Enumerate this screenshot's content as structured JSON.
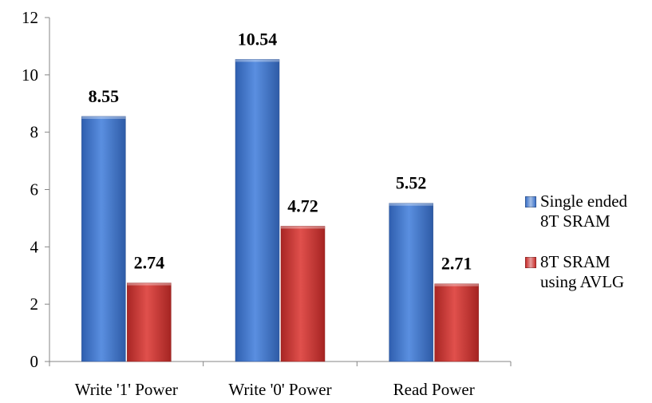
{
  "chart_data": {
    "type": "bar",
    "categories": [
      "Write '1' Power",
      "Write '0' Power",
      "Read Power"
    ],
    "series": [
      {
        "name": "Single ended 8T SRAM",
        "legend_lines": [
          "Single ended",
          "8T SRAM"
        ],
        "values": [
          8.55,
          10.54,
          5.52
        ],
        "value_labels": [
          "8.55",
          "10.54",
          "5.52"
        ],
        "color": "#3E74C9"
      },
      {
        "name": "8T SRAM using AVLG",
        "legend_lines": [
          "8T  SRAM",
          "using AVLG"
        ],
        "values": [
          2.74,
          4.72,
          2.71
        ],
        "value_labels": [
          "2.74",
          "4.72",
          "2.71"
        ],
        "color": "#C9302E"
      }
    ],
    "ylim": [
      0,
      12
    ],
    "yticks": [
      "0",
      "2",
      "4",
      "6",
      "8",
      "10",
      "12"
    ],
    "grid": false,
    "legend_position": "right",
    "title": "",
    "xlabel": "",
    "ylabel": ""
  }
}
